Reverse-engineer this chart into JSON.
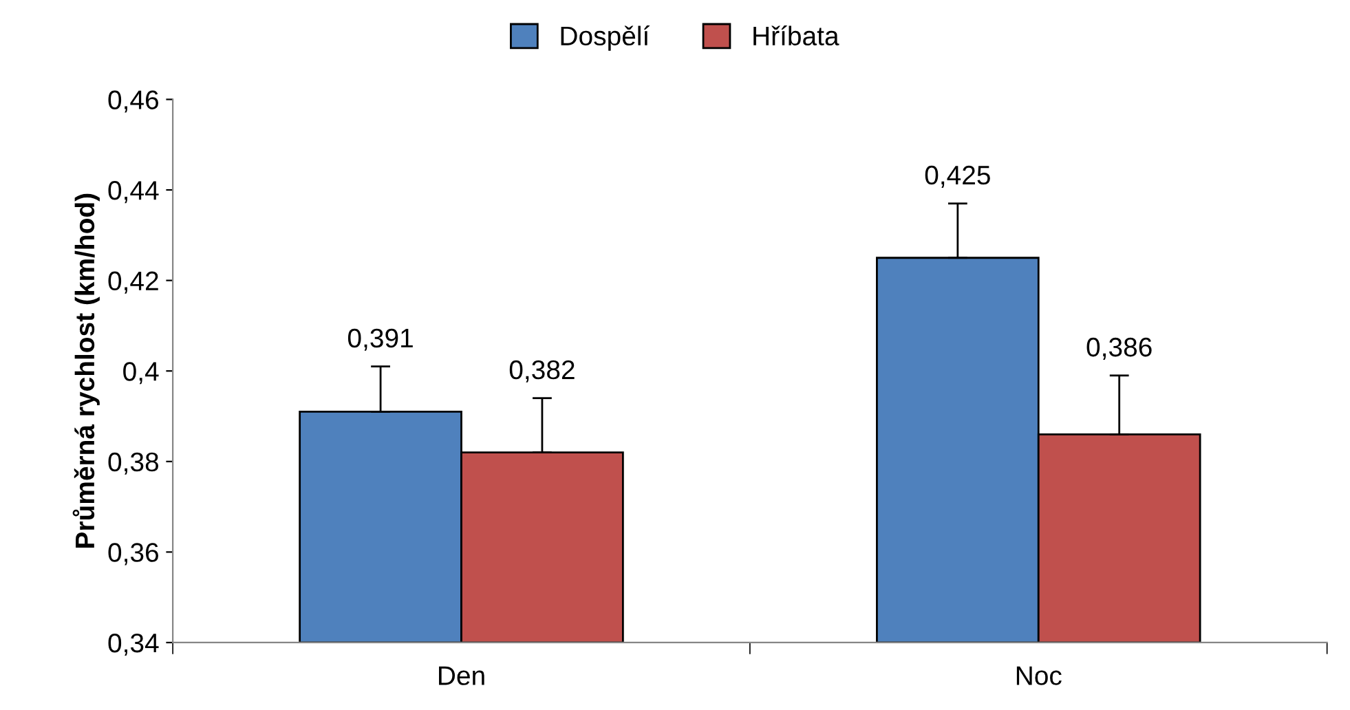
{
  "chart_data": {
    "type": "bar",
    "ylabel": "Průměrná rychlost (km/hod)",
    "categories": [
      "Den",
      "Noc"
    ],
    "series": [
      {
        "name": "Dospělí",
        "color": "#4f81bd",
        "values": [
          0.391,
          0.425
        ],
        "errors": [
          [
            0.391,
            0.401
          ],
          [
            0.425,
            0.437
          ]
        ],
        "value_labels": [
          "0,391",
          "0,425"
        ]
      },
      {
        "name": "Hříbata",
        "color": "#c0504d",
        "values": [
          0.382,
          0.386
        ],
        "errors": [
          [
            0.382,
            0.394
          ],
          [
            0.386,
            0.399
          ]
        ],
        "value_labels": [
          "0,382",
          "0,386"
        ]
      }
    ],
    "ylim": [
      0.34,
      0.46
    ],
    "yticks": [
      {
        "value": 0.34,
        "label": "0,34"
      },
      {
        "value": 0.36,
        "label": "0,36"
      },
      {
        "value": 0.38,
        "label": "0,38"
      },
      {
        "value": 0.4,
        "label": "0,4"
      },
      {
        "value": 0.42,
        "label": "0,42"
      },
      {
        "value": 0.44,
        "label": "0,44"
      },
      {
        "value": 0.46,
        "label": "0,46"
      }
    ],
    "grid": false,
    "legend": "top"
  }
}
